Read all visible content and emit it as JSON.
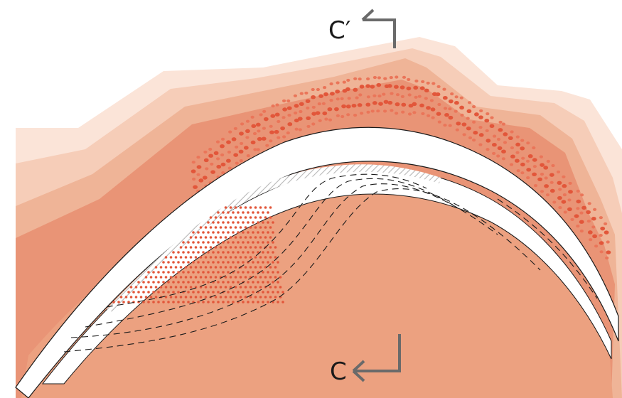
{
  "labels": {
    "top": "C′",
    "bottom": "C"
  },
  "colors": {
    "skin_outer_1": "#fbe4d8",
    "skin_outer_2": "#f6cdb8",
    "skin_outer_3": "#efb497",
    "tissue_main": "#e99476",
    "tissue_lower": "#eca180",
    "cell_dot": "#e2563a",
    "cell_dot_light": "#ea7559",
    "band": "#ffffff",
    "line": "#1a1a1a",
    "hatch": "#b7b7b7",
    "marker": "#6a6a6a"
  }
}
